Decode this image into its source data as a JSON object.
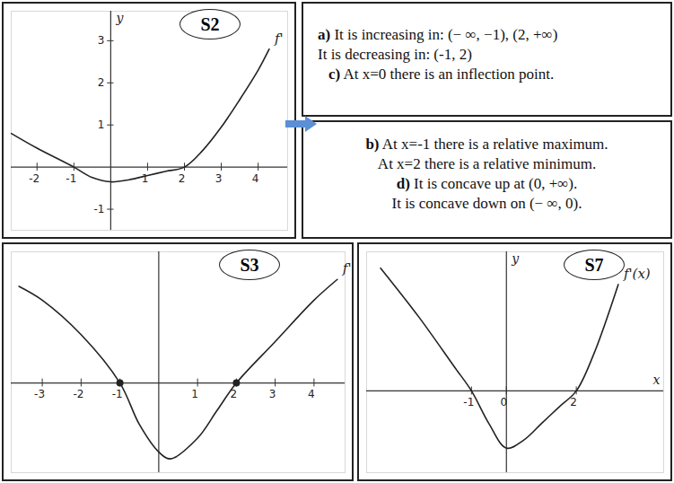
{
  "chart_data": [
    {
      "type": "line",
      "title": "S2",
      "y_label": "y",
      "x": [
        -2.7,
        -2,
        -1,
        -0.5,
        0,
        0.5,
        1,
        1.5,
        2,
        2.5,
        3,
        3.5,
        4,
        4.3
      ],
      "series": [
        {
          "name": "f'",
          "color": "#222222",
          "values": [
            0.8,
            0.45,
            0,
            -0.25,
            -0.35,
            -0.3,
            -0.2,
            -0.1,
            0,
            0.4,
            0.95,
            1.6,
            2.3,
            2.8
          ]
        }
      ],
      "xlim": [
        -2.7,
        4.8
      ],
      "ylim": [
        -1.5,
        3.7
      ],
      "xticks": [
        -2,
        -1,
        1,
        2,
        3,
        4
      ],
      "yticks": [
        -1,
        1,
        2,
        3
      ]
    },
    {
      "type": "line",
      "title": "S3",
      "tick_labels": "x",
      "x": [
        -3.6,
        -3,
        -2,
        -1,
        -0.5,
        0,
        0.3,
        1,
        1.5,
        2,
        3,
        4,
        4.6
      ],
      "series": [
        {
          "name": "f'",
          "color": "#222222",
          "marker": "dot",
          "values": [
            1.4,
            1.2,
            0.7,
            0,
            -0.6,
            -1,
            -1.1,
            -0.8,
            -0.4,
            0,
            0.6,
            1.2,
            1.5
          ]
        }
      ],
      "xlim": [
        -3.8,
        4.8
      ],
      "ylim": [
        -1.3,
        1.9
      ],
      "xticks": [
        -3,
        -2,
        -1,
        1,
        2,
        3,
        4
      ],
      "yticks": []
    },
    {
      "type": "line",
      "title": "S7",
      "tick_labels": "x",
      "x_label": "x",
      "y_label": "y",
      "x": [
        -3.6,
        -2.5,
        -1.5,
        -1,
        -0.5,
        0,
        0.5,
        1,
        1.5,
        2,
        2.5,
        3.2
      ],
      "series": [
        {
          "name": "f'(x)",
          "color": "#222222",
          "values": [
            3,
            1.8,
            0.6,
            0,
            -0.8,
            -1.4,
            -1.2,
            -0.8,
            -0.4,
            0,
            0.9,
            2.6
          ]
        }
      ],
      "xlim": [
        -4,
        4.5
      ],
      "ylim": [
        -2,
        3.4
      ],
      "xticks": [
        -1,
        0,
        2
      ],
      "yticks": []
    }
  ],
  "text_boxes": [
    {
      "lines": [
        {
          "label": "a)",
          "text": "It is increasing in: (− ∞, −1), (2, +∞)"
        },
        {
          "text": "It is decreasing in: (-1, 2)"
        },
        {
          "label": "c)",
          "text": "At x=0 there is an inflection point."
        }
      ]
    },
    {
      "lines": [
        {
          "label": "b)",
          "text": "At x=-1 there is a relative maximum."
        },
        {
          "text": "At x=2 there is a relative minimum."
        },
        {
          "label": "d)",
          "text": "It is concave up at (0, +∞)."
        },
        {
          "text": "It is concave down on (− ∞, 0)."
        }
      ]
    }
  ]
}
